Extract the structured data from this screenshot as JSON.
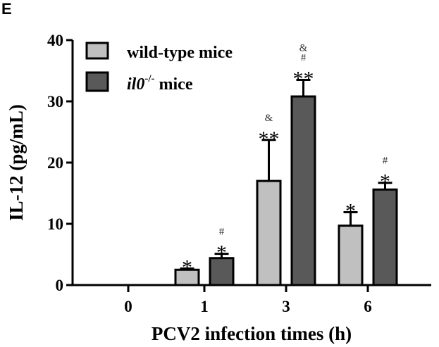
{
  "panel_label": "E",
  "chart_data": {
    "type": "bar",
    "title": "",
    "xlabel": "PCV2 infection times (h)",
    "ylabel": "IL-12 (pg/mL)",
    "ylim": [
      0,
      40
    ],
    "yticks": [
      0,
      10,
      20,
      30,
      40
    ],
    "categories": [
      "0",
      "1",
      "3",
      "6"
    ],
    "legend_position": "top-left",
    "series": [
      {
        "name": "wild-type mice",
        "color": "#c0c0c0",
        "values": [
          0,
          2.5,
          17.0,
          9.7
        ],
        "errors": [
          0,
          0.2,
          6.7,
          2.2
        ],
        "significance": [
          [],
          [
            "*"
          ],
          [
            "**",
            "&"
          ],
          [
            "*"
          ]
        ]
      },
      {
        "name_italic": "il0",
        "name_sup": "-/-",
        "name_rest": " mice",
        "color": "#595959",
        "values": [
          0,
          4.4,
          30.8,
          15.6
        ],
        "errors": [
          0,
          0.7,
          2.7,
          1.1
        ],
        "significance": [
          [],
          [
            "*",
            "#"
          ],
          [
            "**",
            "#",
            "&"
          ],
          [
            "*",
            "#"
          ]
        ]
      }
    ]
  }
}
